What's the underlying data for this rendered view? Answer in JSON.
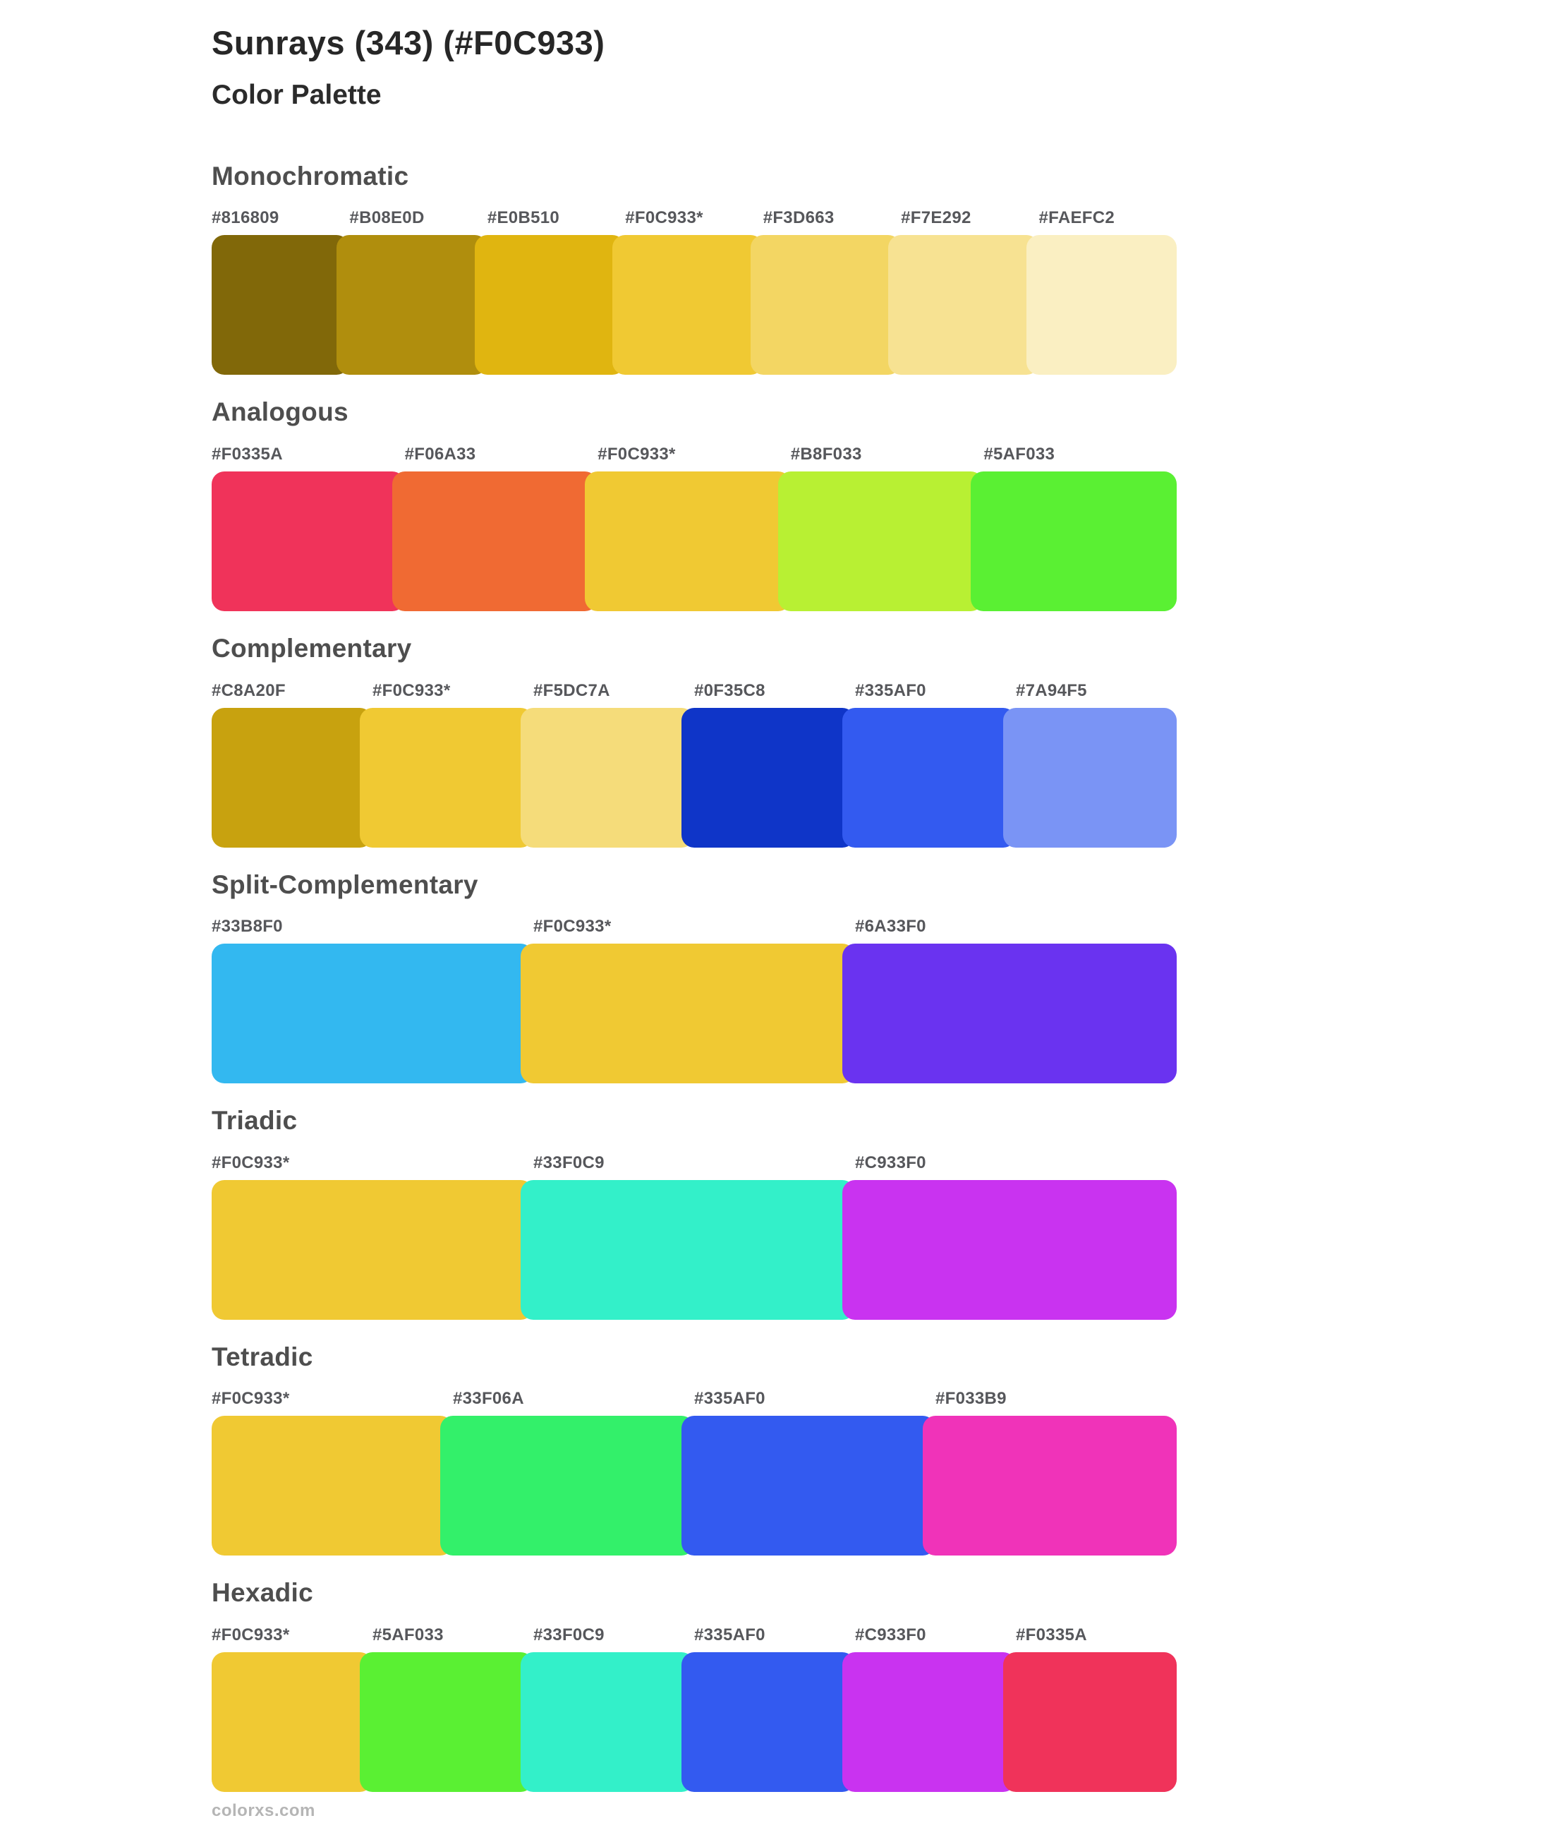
{
  "page": {
    "title": "Sunrays (343) (#F0C933)",
    "subtitle": "Color Palette",
    "footer": "colorxs.com"
  },
  "sections": [
    {
      "name": "Monochromatic",
      "swatches": [
        {
          "label": "#816809",
          "color": "#816809"
        },
        {
          "label": "#B08E0D",
          "color": "#B08E0D"
        },
        {
          "label": "#E0B510",
          "color": "#E0B510"
        },
        {
          "label": "#F0C933*",
          "color": "#F0C933"
        },
        {
          "label": "#F3D663",
          "color": "#F3D663"
        },
        {
          "label": "#F7E292",
          "color": "#F7E292"
        },
        {
          "label": "#FAEFC2",
          "color": "#FAEFC2"
        }
      ]
    },
    {
      "name": "Analogous",
      "swatches": [
        {
          "label": "#F0335A",
          "color": "#F0335A"
        },
        {
          "label": "#F06A33",
          "color": "#F06A33"
        },
        {
          "label": "#F0C933*",
          "color": "#F0C933"
        },
        {
          "label": "#B8F033",
          "color": "#B8F033"
        },
        {
          "label": "#5AF033",
          "color": "#5AF033"
        }
      ]
    },
    {
      "name": "Complementary",
      "swatches": [
        {
          "label": "#C8A20F",
          "color": "#C8A20F"
        },
        {
          "label": "#F0C933*",
          "color": "#F0C933"
        },
        {
          "label": "#F5DC7A",
          "color": "#F5DC7A"
        },
        {
          "label": "#0F35C8",
          "color": "#0F35C8"
        },
        {
          "label": "#335AF0",
          "color": "#335AF0"
        },
        {
          "label": "#7A94F5",
          "color": "#7A94F5"
        }
      ]
    },
    {
      "name": "Split-Complementary",
      "swatches": [
        {
          "label": "#33B8F0",
          "color": "#33B8F0"
        },
        {
          "label": "#F0C933*",
          "color": "#F0C933"
        },
        {
          "label": "#6A33F0",
          "color": "#6A33F0"
        }
      ]
    },
    {
      "name": "Triadic",
      "swatches": [
        {
          "label": "#F0C933*",
          "color": "#F0C933"
        },
        {
          "label": "#33F0C9",
          "color": "#33F0C9"
        },
        {
          "label": "#C933F0",
          "color": "#C933F0"
        }
      ]
    },
    {
      "name": "Tetradic",
      "swatches": [
        {
          "label": "#F0C933*",
          "color": "#F0C933"
        },
        {
          "label": "#33F06A",
          "color": "#33F06A"
        },
        {
          "label": "#335AF0",
          "color": "#335AF0"
        },
        {
          "label": "#F033B9",
          "color": "#F033B9"
        }
      ]
    },
    {
      "name": "Hexadic",
      "swatches": [
        {
          "label": "#F0C933*",
          "color": "#F0C933"
        },
        {
          "label": "#5AF033",
          "color": "#5AF033"
        },
        {
          "label": "#33F0C9",
          "color": "#33F0C9"
        },
        {
          "label": "#335AF0",
          "color": "#335AF0"
        },
        {
          "label": "#C933F0",
          "color": "#C933F0"
        },
        {
          "label": "#F0335A",
          "color": "#F0335A"
        }
      ]
    }
  ]
}
